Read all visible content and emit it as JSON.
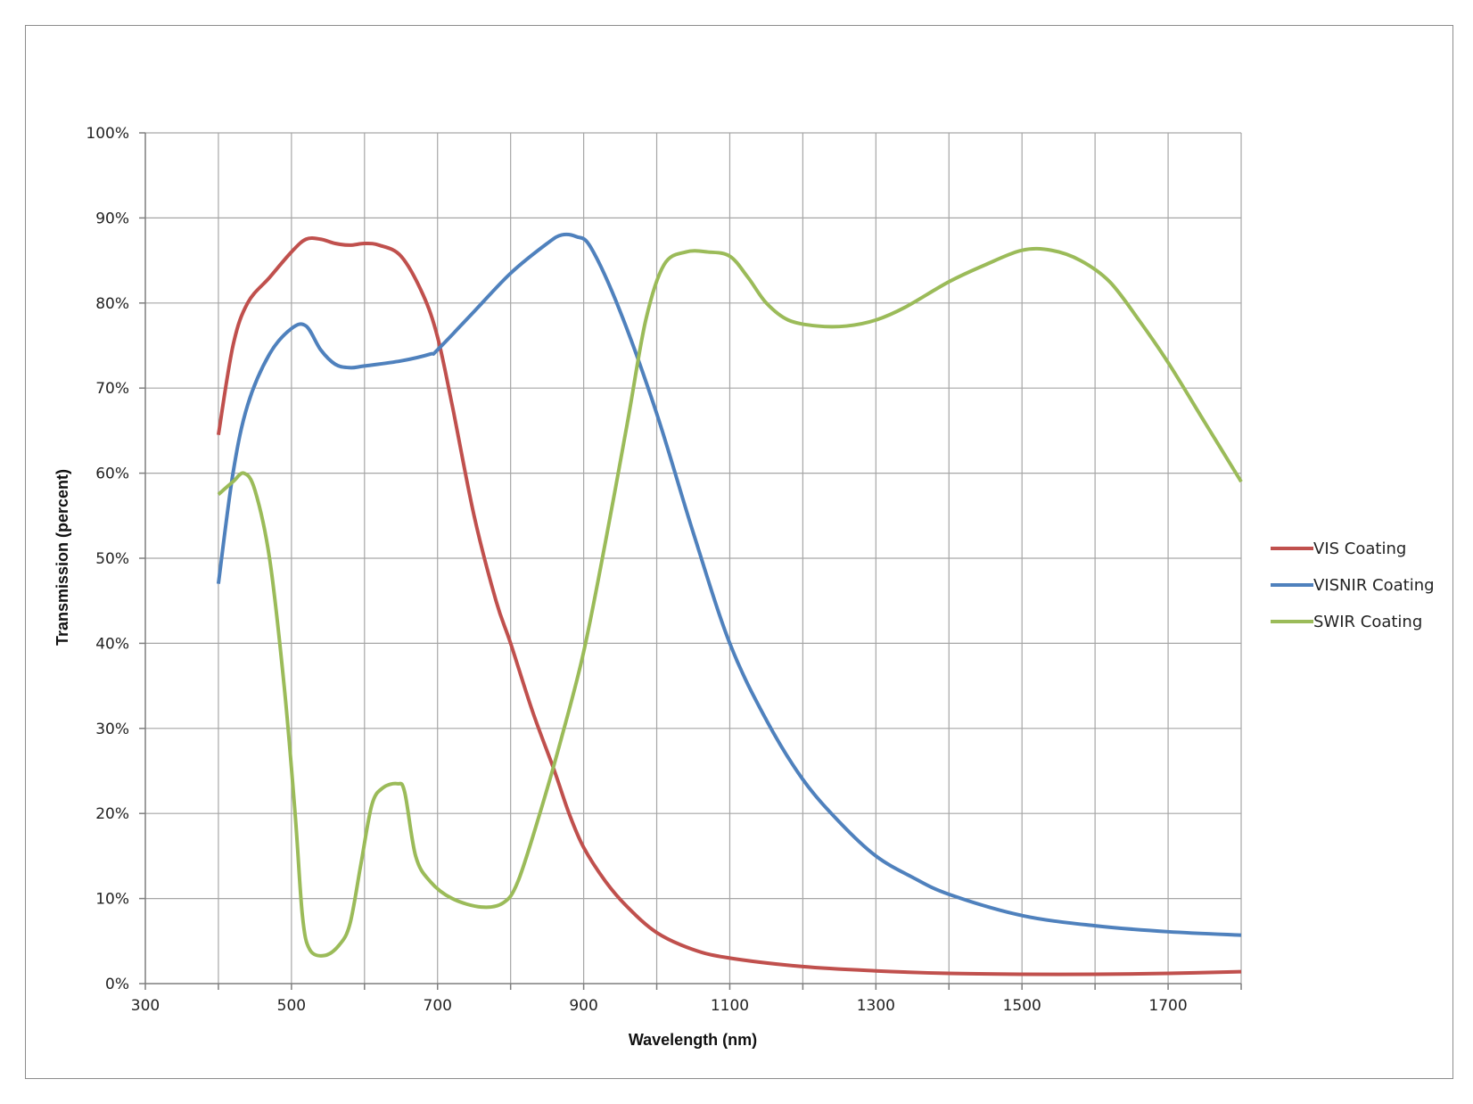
{
  "chart_data": {
    "type": "line",
    "title": "",
    "xlabel": "Wavelength (nm)",
    "ylabel": "Transmission (percent)",
    "xlim": [
      300,
      1800
    ],
    "ylim": [
      0,
      100
    ],
    "x_grid_step": 100,
    "y_grid_step": 10,
    "grid": true,
    "legend_position": "right",
    "x_ticks": [
      300,
      500,
      700,
      900,
      1100,
      1300,
      1500,
      1700
    ],
    "x_tick_labels": [
      "300",
      "500",
      "700",
      "900",
      "1100",
      "1300",
      "1500",
      "1700"
    ],
    "y_ticks": [
      0,
      10,
      20,
      30,
      40,
      50,
      60,
      70,
      80,
      90,
      100
    ],
    "y_tick_labels": [
      "0%",
      "10%",
      "20%",
      "30%",
      "40%",
      "50%",
      "60%",
      "70%",
      "80%",
      "90%",
      "100%"
    ],
    "series": [
      {
        "name": "VIS Coating",
        "color": "#c0504d",
        "points": [
          [
            400,
            64.5
          ],
          [
            420,
            75
          ],
          [
            440,
            80
          ],
          [
            470,
            83
          ],
          [
            500,
            86
          ],
          [
            520,
            87.5
          ],
          [
            540,
            87.5
          ],
          [
            560,
            87
          ],
          [
            580,
            86.8
          ],
          [
            600,
            87
          ],
          [
            620,
            86.8
          ],
          [
            650,
            85.5
          ],
          [
            680,
            81
          ],
          [
            700,
            76
          ],
          [
            720,
            68
          ],
          [
            750,
            55
          ],
          [
            780,
            45
          ],
          [
            800,
            40
          ],
          [
            830,
            32
          ],
          [
            860,
            25
          ],
          [
            880,
            20
          ],
          [
            900,
            16
          ],
          [
            930,
            12
          ],
          [
            960,
            9
          ],
          [
            1000,
            6
          ],
          [
            1050,
            4
          ],
          [
            1100,
            3
          ],
          [
            1200,
            2
          ],
          [
            1300,
            1.5
          ],
          [
            1400,
            1.2
          ],
          [
            1500,
            1.1
          ],
          [
            1600,
            1.1
          ],
          [
            1700,
            1.2
          ],
          [
            1800,
            1.4
          ]
        ]
      },
      {
        "name": "VISNIR Coating",
        "color": "#4f81bd",
        "points": [
          [
            400,
            47
          ],
          [
            420,
            60
          ],
          [
            440,
            68
          ],
          [
            470,
            74
          ],
          [
            500,
            77
          ],
          [
            520,
            77.3
          ],
          [
            540,
            74.5
          ],
          [
            560,
            72.8
          ],
          [
            580,
            72.4
          ],
          [
            600,
            72.6
          ],
          [
            650,
            73.2
          ],
          [
            690,
            74
          ],
          [
            700,
            74.5
          ],
          [
            750,
            79
          ],
          [
            800,
            83.5
          ],
          [
            850,
            87
          ],
          [
            870,
            88
          ],
          [
            890,
            87.8
          ],
          [
            910,
            86.5
          ],
          [
            950,
            79
          ],
          [
            1000,
            67
          ],
          [
            1050,
            53
          ],
          [
            1100,
            40
          ],
          [
            1150,
            31
          ],
          [
            1200,
            24
          ],
          [
            1250,
            19
          ],
          [
            1300,
            15
          ],
          [
            1350,
            12.5
          ],
          [
            1400,
            10.5
          ],
          [
            1500,
            8
          ],
          [
            1600,
            6.8
          ],
          [
            1700,
            6.1
          ],
          [
            1800,
            5.7
          ]
        ]
      },
      {
        "name": "SWIR Coating",
        "color": "#9bbb59",
        "points": [
          [
            400,
            57.5
          ],
          [
            420,
            59
          ],
          [
            435,
            60
          ],
          [
            450,
            58
          ],
          [
            470,
            50
          ],
          [
            490,
            35
          ],
          [
            505,
            20
          ],
          [
            515,
            8
          ],
          [
            525,
            4
          ],
          [
            545,
            3.3
          ],
          [
            565,
            4.5
          ],
          [
            580,
            7
          ],
          [
            595,
            14
          ],
          [
            610,
            21
          ],
          [
            625,
            23
          ],
          [
            645,
            23.5
          ],
          [
            655,
            22.5
          ],
          [
            670,
            15
          ],
          [
            690,
            12
          ],
          [
            720,
            10
          ],
          [
            760,
            9
          ],
          [
            790,
            9.5
          ],
          [
            810,
            12
          ],
          [
            840,
            20
          ],
          [
            870,
            29
          ],
          [
            900,
            39
          ],
          [
            930,
            52
          ],
          [
            960,
            66
          ],
          [
            985,
            78
          ],
          [
            1010,
            84.5
          ],
          [
            1040,
            86
          ],
          [
            1070,
            86
          ],
          [
            1100,
            85.5
          ],
          [
            1125,
            83
          ],
          [
            1150,
            80
          ],
          [
            1180,
            78
          ],
          [
            1220,
            77.3
          ],
          [
            1260,
            77.3
          ],
          [
            1300,
            78
          ],
          [
            1340,
            79.5
          ],
          [
            1400,
            82.5
          ],
          [
            1450,
            84.5
          ],
          [
            1500,
            86.2
          ],
          [
            1540,
            86.2
          ],
          [
            1580,
            85
          ],
          [
            1620,
            82.5
          ],
          [
            1660,
            78
          ],
          [
            1700,
            73
          ],
          [
            1750,
            66
          ],
          [
            1800,
            59
          ]
        ]
      }
    ]
  }
}
